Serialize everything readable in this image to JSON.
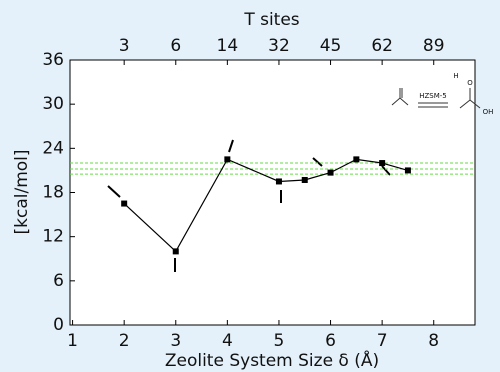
{
  "chart_data": {
    "type": "line",
    "title": "T sites",
    "x_label": "Zeolite System Size δ (Å)",
    "y_label": "[kcal/mol]",
    "x": [
      2,
      3,
      4,
      5,
      5.5,
      6,
      6.5,
      7,
      7.5
    ],
    "series": [
      {
        "color": "#000000",
        "values": [
          16.5,
          10,
          22.5,
          19.5,
          19.7,
          20.7,
          22.5,
          22,
          21
        ]
      }
    ],
    "reference_lines": [
      20.5,
      21.2,
      22
    ],
    "reference_color": "#66dd44",
    "xlim": [
      0.95,
      8.8
    ],
    "ylim": [
      0,
      36
    ],
    "xticks": [
      1,
      2,
      3,
      4,
      5,
      6,
      7,
      8
    ],
    "yticks": [
      0,
      6,
      12,
      18,
      24,
      30,
      36
    ],
    "top_ticks": [
      {
        "value": 2,
        "label": "3"
      },
      {
        "value": 3,
        "label": "6"
      },
      {
        "value": 4,
        "label": "14"
      },
      {
        "value": 5,
        "label": "32"
      },
      {
        "value": 6,
        "label": "45"
      },
      {
        "value": 7,
        "label": "62"
      },
      {
        "value": 8,
        "label": "89"
      }
    ],
    "annotations": [
      "HZSM-5",
      "H",
      "O",
      "OH"
    ]
  }
}
